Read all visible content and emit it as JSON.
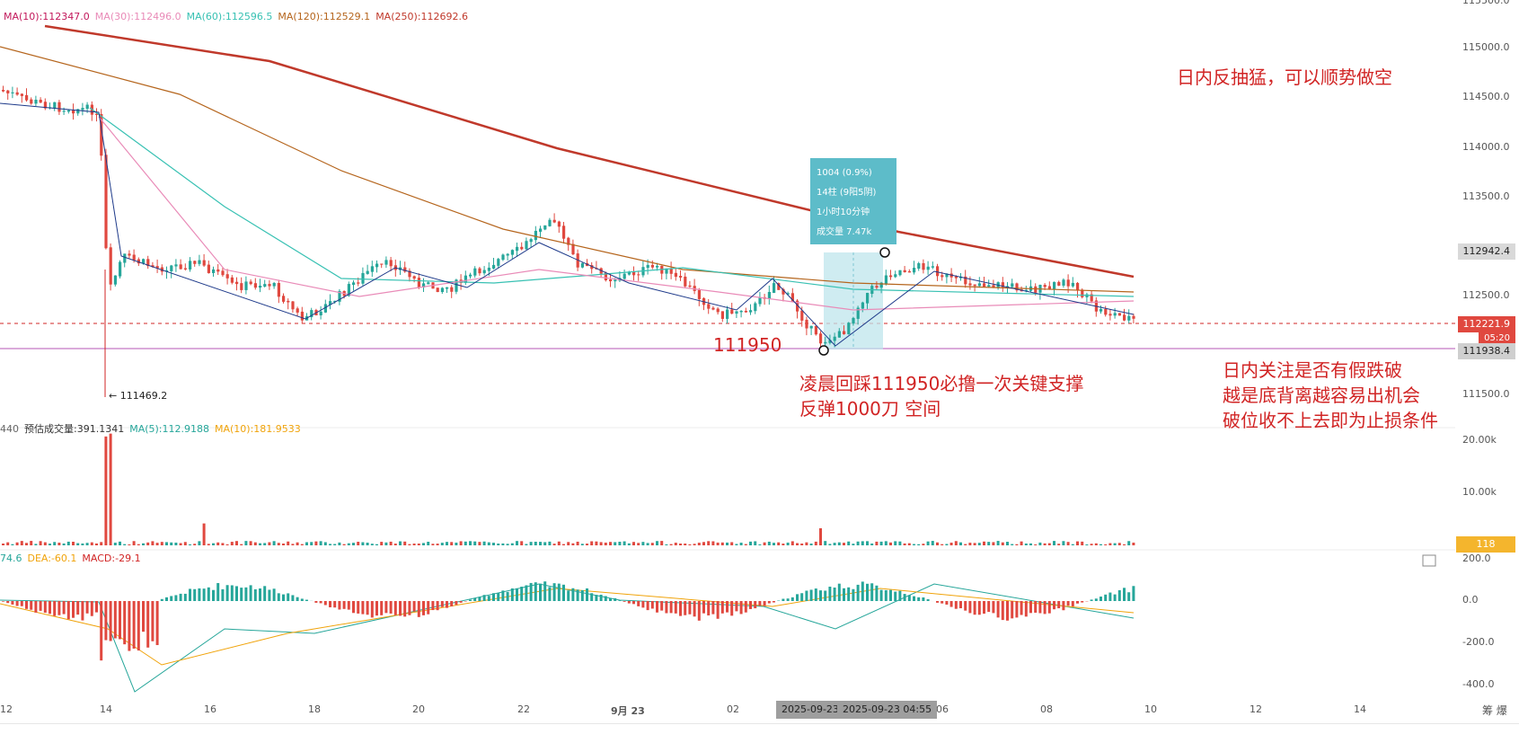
{
  "legend_ma": [
    {
      "label": "MA(10):112347.0",
      "color": "#c2185b"
    },
    {
      "label": "MA(30):112496.0",
      "color": "#e98bb8"
    },
    {
      "label": "MA(60):112596.5",
      "color": "#38c1b3"
    },
    {
      "label": "MA(120):112529.1",
      "color": "#b5651d"
    },
    {
      "label": "MA(250):112692.6",
      "color": "#c0392b"
    }
  ],
  "legend_volume": [
    {
      "label": "440",
      "color": "#666666"
    },
    {
      "label": "预估成交量:391.1341",
      "color": "#333333"
    },
    {
      "label": "MA(5):112.9188",
      "color": "#26a69a"
    },
    {
      "label": "MA(10):181.9533",
      "color": "#f0a30a"
    }
  ],
  "legend_macd": [
    {
      "label": "74.6",
      "color": "#26a69a"
    },
    {
      "label": "DEA:-60.1",
      "color": "#f0a30a"
    },
    {
      "label": "MACD:-29.1",
      "color": "#d12424"
    }
  ],
  "price_axis": [
    "115500.0",
    "115000.0",
    "114500.0",
    "114000.0",
    "113500.0",
    "112500.0",
    "111500.0"
  ],
  "volume_axis": [
    "20.00k",
    "10.00k"
  ],
  "macd_axis": [
    "200.0",
    "0.0",
    "-200.0",
    "-400.0"
  ],
  "price_tags": {
    "tag1": "112942.4",
    "tag2": "112221.9",
    "tag3": "05:20",
    "tag4": "111938.4",
    "volume_tag": "118"
  },
  "x_axis": [
    "12",
    "14",
    "16",
    "18",
    "20",
    "22",
    "9月 23",
    "02",
    "06",
    "08",
    "10",
    "12",
    "14"
  ],
  "x_tags": [
    "2025-09-23",
    "2025-09-23 04:55"
  ],
  "low_label": "← 111469.2",
  "line_label": "111950",
  "tooltip": [
    "1004 (0.9%)",
    "14柱 (9阳5阴)",
    "1小时10分钟",
    "成交量 7.47k"
  ],
  "annotations": {
    "top_right": "日内反抽猛，可以顺势做空",
    "mid_1": "凌晨回踩111950必撸一次关键支撑",
    "mid_2": "反弹1000刀 空间",
    "right_1": "日内关注是否有假跌破",
    "right_2": "越是底背离越容易出机会",
    "right_3": "破位收不上去即为止损条件"
  },
  "bottom_corner": "筹 爆",
  "chart_data": {
    "type": "candlestick",
    "symbol_interval": "5m",
    "price_range": [
      111300,
      115600
    ],
    "key_levels": {
      "support_line": 111938.4,
      "current": 112221.9,
      "measure_high": 112942.4,
      "swing_low": 111469.2
    },
    "moving_averages": {
      "MA10": 112347.0,
      "MA30": 112496.0,
      "MA60": 112596.5,
      "MA120": 112529.1,
      "MA250": 112692.6
    },
    "measure": {
      "change": 1004,
      "pct": "0.9%",
      "bars": 14,
      "up": 9,
      "down": 5,
      "duration": "1小时10分钟",
      "volume": "7.47k"
    },
    "volume_ma": {
      "est": 391.1341,
      "MA5": 112.9188,
      "MA10": 181.9533
    },
    "macd": {
      "DEA": -60.1,
      "MACD": -29.1
    }
  }
}
